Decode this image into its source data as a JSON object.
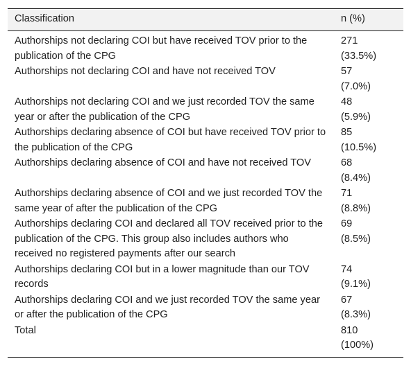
{
  "table": {
    "headers": [
      "Classification",
      "n (%)"
    ],
    "rows": [
      {
        "label": "Authorships not declaring COI but have received TOV prior to the publication of the CPG",
        "n": "271",
        "pct": "(33.5%)"
      },
      {
        "label": "Authorships not declaring COI and have not received TOV",
        "n": "57",
        "pct": "(7.0%)"
      },
      {
        "label": "Authorships not declaring COI and we just recorded TOV the same year or after the publication of the CPG",
        "n": "48",
        "pct": "(5.9%)"
      },
      {
        "label": "Authorships declaring absence of COI but have received TOV prior to the publication of the CPG",
        "n": "85",
        "pct": "(10.5%)"
      },
      {
        "label": "Authorships declaring absence of COI and have not received TOV",
        "n": "68",
        "pct": "(8.4%)"
      },
      {
        "label": "Authorships declaring absence of COI and we just recorded TOV the same year of after the publication of the CPG",
        "n": "71",
        "pct": "(8.8%)"
      },
      {
        "label": "Authorships declaring COI and declared all TOV received prior to the publication of the CPG. This group also includes authors who received no registered payments after our search",
        "n": "69",
        "pct": "(8.5%)"
      },
      {
        "label": "Authorships declaring COI but in a lower magnitude than our TOV records",
        "n": "74",
        "pct": "(9.1%)"
      },
      {
        "label": "Authorships declaring COI and we just recorded TOV the same year or after the publication of the CPG",
        "n": "67",
        "pct": "(8.3%)"
      },
      {
        "label": "Total",
        "n": "810",
        "pct": "(100%)"
      }
    ]
  }
}
